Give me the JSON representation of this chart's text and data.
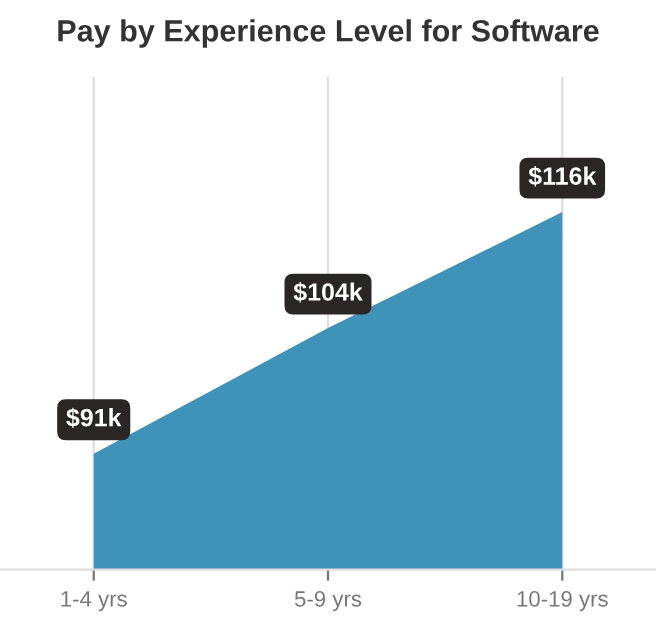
{
  "chart_data": {
    "type": "area",
    "title": "Pay by Experience Level for Software",
    "categories": [
      "1-4 yrs",
      "5-9 yrs",
      "10-19 yrs"
    ],
    "series": [
      {
        "color": "#3f93b8",
        "values": [
          91,
          104,
          116
        ],
        "value_labels": [
          "$91k",
          "$104k",
          "$116k"
        ]
      }
    ],
    "ylim": [
      79,
      130
    ],
    "tick_labels": "x",
    "grid": "x",
    "legend": false
  }
}
